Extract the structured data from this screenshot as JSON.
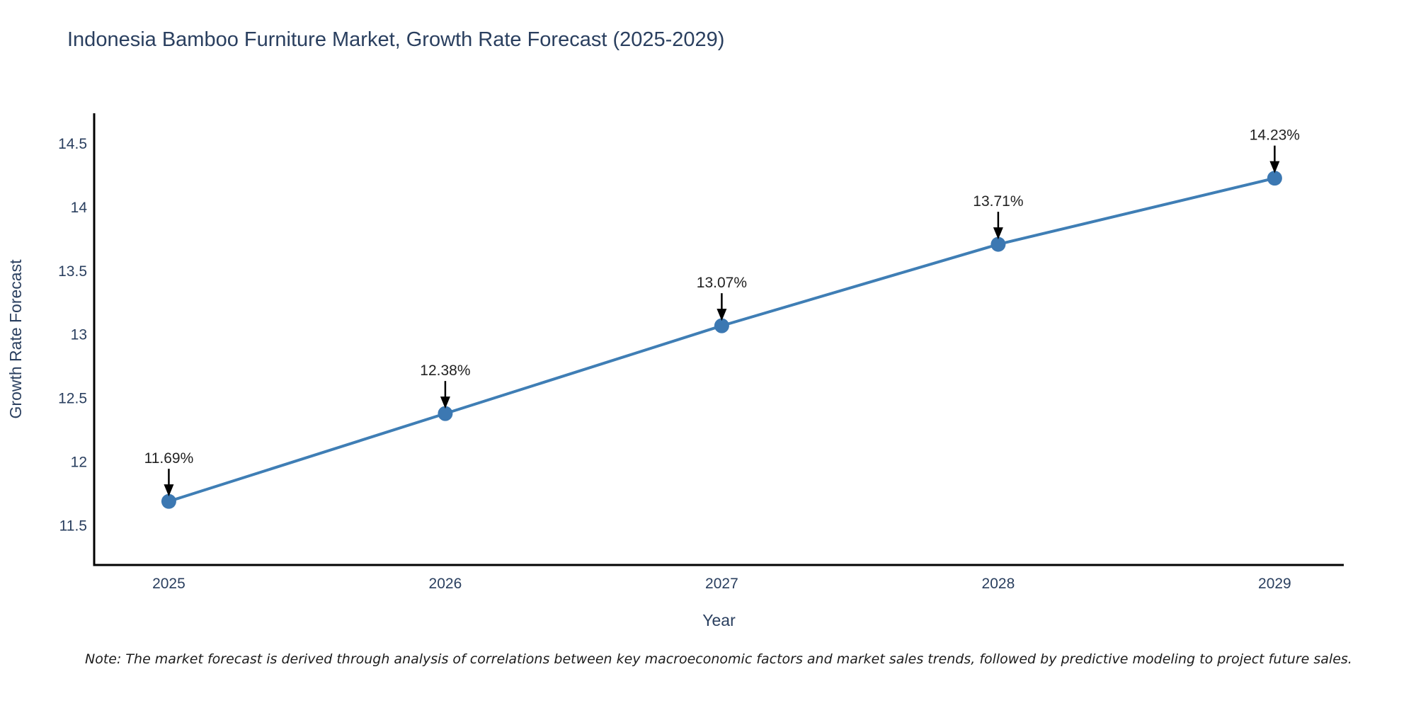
{
  "chart_data": {
    "type": "line",
    "title": "Indonesia Bamboo Furniture Market, Growth Rate Forecast (2025-2029)",
    "xlabel": "Year",
    "ylabel": "Growth Rate Forecast",
    "categories": [
      "2025",
      "2026",
      "2027",
      "2028",
      "2029"
    ],
    "x": [
      2025,
      2026,
      2027,
      2028,
      2029
    ],
    "series": [
      {
        "name": "Growth Rate Forecast",
        "values": [
          11.69,
          12.38,
          13.07,
          13.71,
          14.23
        ],
        "point_labels": [
          "11.69%",
          "12.38%",
          "13.07%",
          "13.71%",
          "14.23%"
        ]
      }
    ],
    "y_ticks": [
      11.5,
      12,
      12.5,
      13,
      13.5,
      14,
      14.5
    ],
    "y_tick_labels": [
      "11.5",
      "12",
      "12.5",
      "13",
      "13.5",
      "14",
      "14.5"
    ],
    "xlim": [
      2024.73,
      2029.25
    ],
    "ylim": [
      11.19,
      14.74
    ],
    "grid": false,
    "legend": "none",
    "colors": {
      "line": "#3f7eb5",
      "marker": "#3c78b2",
      "annotation_text": "#222222",
      "annotation_arrow": "#000000",
      "axis": "#000000",
      "tick_text": "#2a3f5f",
      "title_text": "#2a3f5f"
    }
  },
  "note": "Note: The market forecast is derived through analysis of correlations between key macroeconomic factors and market sales trends, followed by predictive modeling to project future sales."
}
